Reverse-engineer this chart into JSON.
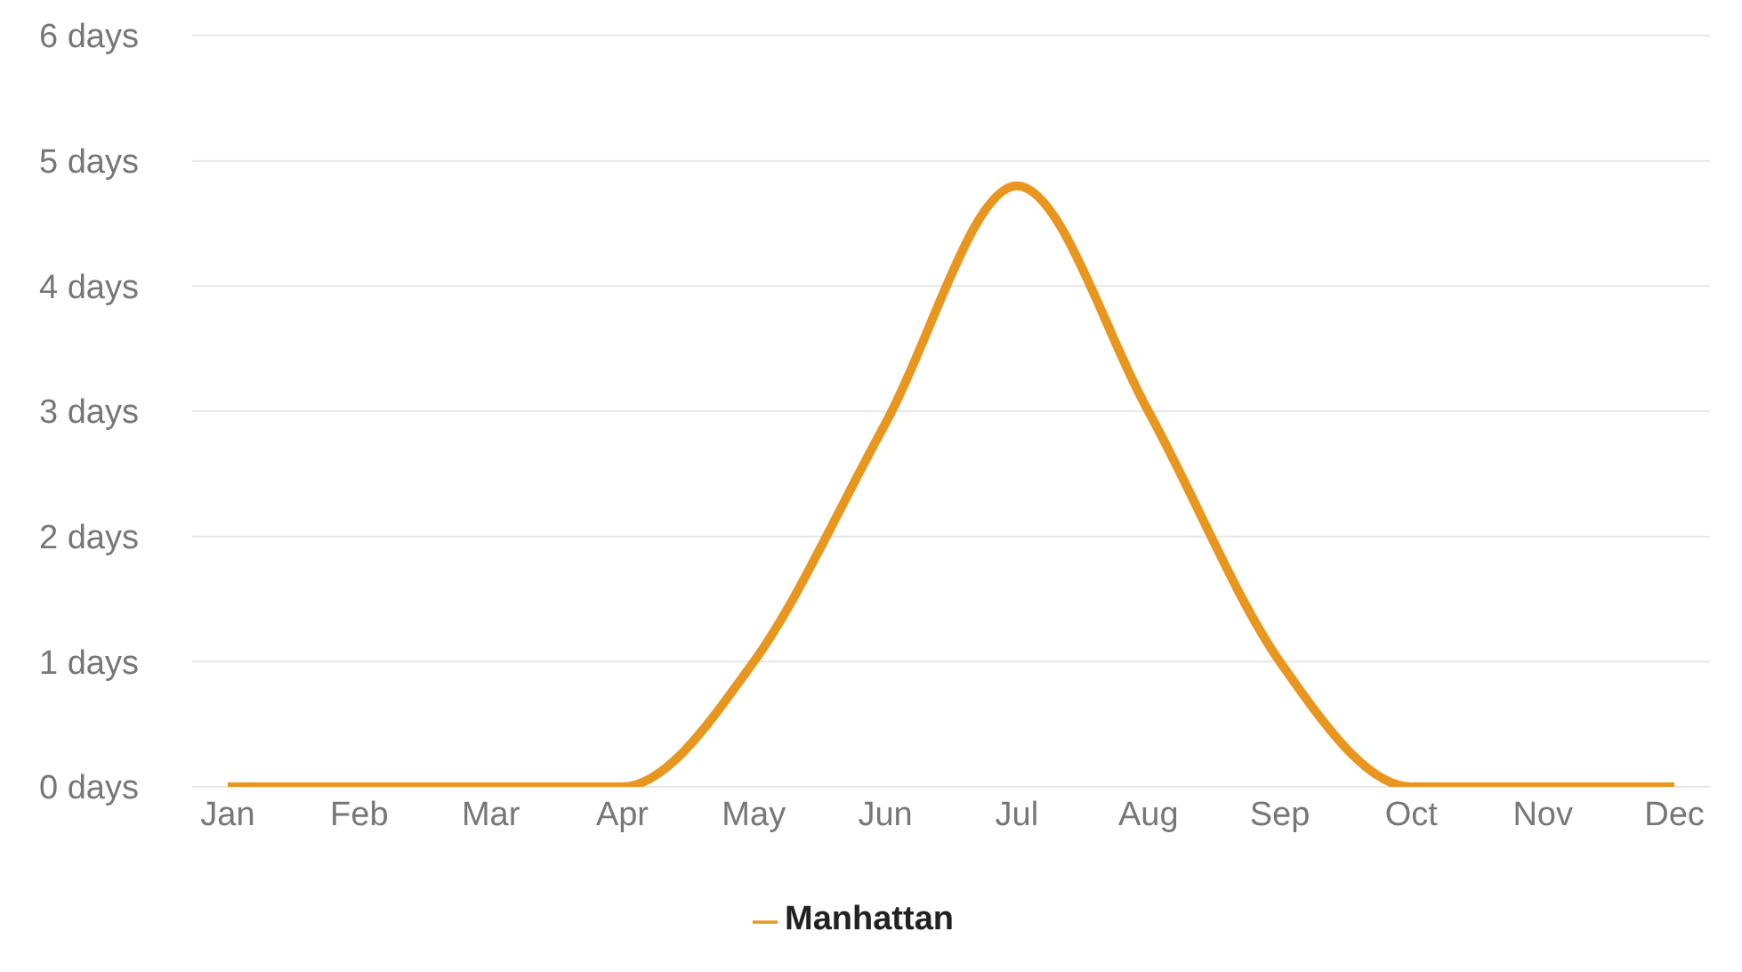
{
  "chart_data": {
    "type": "line",
    "categories": [
      "Jan",
      "Feb",
      "Mar",
      "Apr",
      "May",
      "Jun",
      "Jul",
      "Aug",
      "Sep",
      "Oct",
      "Nov",
      "Dec"
    ],
    "series": [
      {
        "name": "Manhattan",
        "color": "#e8961e",
        "values": [
          0,
          0,
          0,
          0,
          1.0,
          2.9,
          4.8,
          3.0,
          1.0,
          0,
          0,
          0
        ]
      }
    ],
    "ylim": [
      0,
      6
    ],
    "yticks": [
      {
        "value": 0,
        "label": "0 days"
      },
      {
        "value": 1,
        "label": "1 days"
      },
      {
        "value": 2,
        "label": "2 days"
      },
      {
        "value": 3,
        "label": "3 days"
      },
      {
        "value": 4,
        "label": "4 days"
      },
      {
        "value": 5,
        "label": "5 days"
      },
      {
        "value": 6,
        "label": "6 days"
      }
    ],
    "grid": "y",
    "legend": "bottom",
    "marker": "none",
    "line_style": "solid"
  }
}
